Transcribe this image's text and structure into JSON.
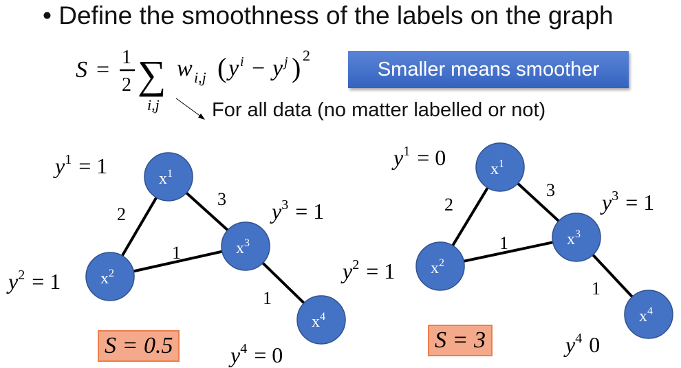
{
  "bullet": {
    "symbol": "•",
    "text": "Define the smoothness of the labels on the graph"
  },
  "formula": {
    "lhs": "S",
    "eq": "=",
    "num": "1",
    "den": "2",
    "sum": "∑",
    "sub": "i,j",
    "w": "w",
    "wsub": "i,j",
    "open": "(",
    "y1": "y",
    "s1": "i",
    "minus": "−",
    "y2": "y",
    "s2": "j",
    "close": ")",
    "pow": "2"
  },
  "badge": "Smaller means smoother",
  "note": "For all data (no matter labelled or not)",
  "colors": {
    "node": "#4472c4",
    "node_border": "#2f528f",
    "badge": "#3f6cc8",
    "s_box": "#f4a98a"
  },
  "graphs": [
    {
      "nodes": [
        {
          "label": "x",
          "sup": "1"
        },
        {
          "label": "x",
          "sup": "2"
        },
        {
          "label": "x",
          "sup": "3"
        },
        {
          "label": "x",
          "sup": "4"
        }
      ],
      "labels": [
        {
          "v": "y",
          "sup": "1",
          "rhs": "= 1"
        },
        {
          "v": "y",
          "sup": "2",
          "rhs": "= 1"
        },
        {
          "v": "y",
          "sup": "3",
          "rhs": "= 1"
        },
        {
          "v": "y",
          "sup": "4",
          "rhs": "= 0"
        }
      ],
      "weights": [
        "2",
        "3",
        "1",
        "1"
      ],
      "s": "S = 0.5"
    },
    {
      "nodes": [
        {
          "label": "x",
          "sup": "1"
        },
        {
          "label": "x",
          "sup": "2"
        },
        {
          "label": "x",
          "sup": "3"
        },
        {
          "label": "x",
          "sup": "4"
        }
      ],
      "labels": [
        {
          "v": "y",
          "sup": "1",
          "rhs": "= 0"
        },
        {
          "v": "y",
          "sup": "2",
          "rhs": "= 1"
        },
        {
          "v": "y",
          "sup": "3",
          "rhs": "= 1"
        },
        {
          "v": "y",
          "sup": "4",
          "rhs": "0"
        }
      ],
      "weights": [
        "2",
        "3",
        "1",
        "1"
      ],
      "s": "S = 3"
    }
  ]
}
